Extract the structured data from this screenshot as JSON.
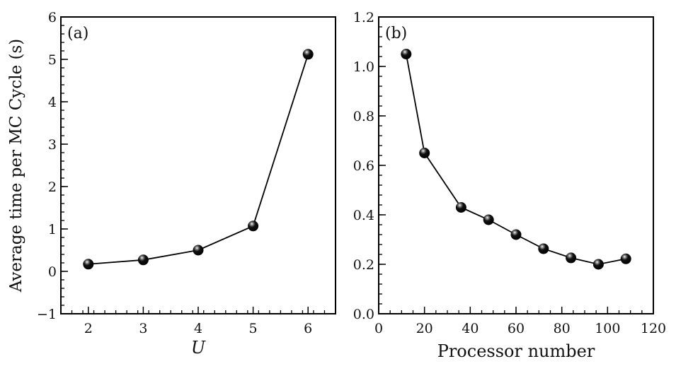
{
  "chart_data": [
    {
      "type": "line",
      "panel_label": "(a)",
      "xlabel": "U",
      "ylabel": "Average time per MC Cycle (s)",
      "xlim": [
        1.5,
        6.5
      ],
      "ylim": [
        -1,
        6
      ],
      "xticks": [
        2,
        3,
        4,
        5,
        6
      ],
      "yticks": [
        -1,
        0,
        1,
        2,
        3,
        4,
        5,
        6
      ],
      "xtick_labels": [
        "2",
        "3",
        "4",
        "5",
        "6"
      ],
      "ytick_labels": [
        "−1",
        "0",
        "1",
        "2",
        "3",
        "4",
        "5",
        "6"
      ],
      "x_minor_step": 0.2,
      "y_minor_step": 0.2,
      "grid": false,
      "marker": "sphere",
      "color": "#000000",
      "series": [
        {
          "x": [
            2,
            3,
            4,
            5,
            6
          ],
          "y": [
            0.17,
            0.27,
            0.5,
            1.07,
            5.12
          ]
        }
      ]
    },
    {
      "type": "line",
      "panel_label": "(b)",
      "xlabel": "Processor number",
      "ylabel": "",
      "xlim": [
        0,
        120
      ],
      "ylim": [
        0,
        1.2
      ],
      "xticks": [
        0,
        20,
        40,
        60,
        80,
        100,
        120
      ],
      "yticks": [
        0,
        0.2,
        0.4,
        0.6,
        0.8,
        1.0,
        1.2
      ],
      "xtick_labels": [
        "0",
        "20",
        "40",
        "60",
        "80",
        "100",
        "120"
      ],
      "ytick_labels": [
        "0.0",
        "0.2",
        "0.4",
        "0.6",
        "0.8",
        "1.0",
        "1.2"
      ],
      "x_minor_step": 5,
      "y_minor_step": 0.04,
      "grid": false,
      "marker": "sphere",
      "color": "#000000",
      "series": [
        {
          "x": [
            12,
            20,
            36,
            48,
            60,
            72,
            84,
            96,
            108
          ],
          "y": [
            1.05,
            0.65,
            0.43,
            0.38,
            0.32,
            0.263,
            0.226,
            0.2,
            0.222
          ]
        }
      ]
    }
  ]
}
